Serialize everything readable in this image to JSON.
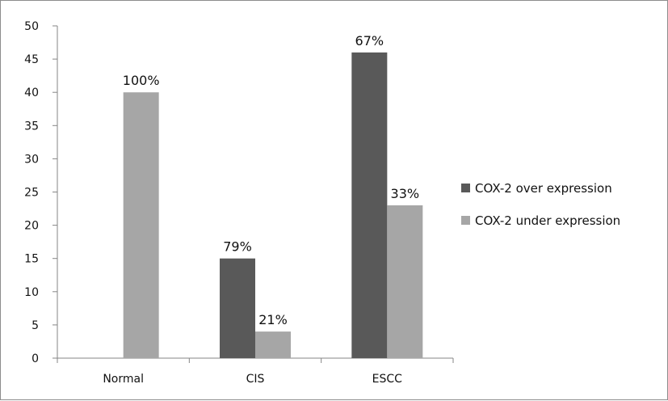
{
  "chart_data": {
    "type": "bar",
    "categories": [
      "Normal",
      "CIS",
      "ESCC"
    ],
    "series": [
      {
        "name": "COX-2 over expression",
        "values": [
          0,
          15,
          46
        ],
        "labels": [
          "",
          "79%",
          "67%"
        ],
        "color": "#595959"
      },
      {
        "name": "COX-2 under expression",
        "values": [
          40,
          4,
          23
        ],
        "labels": [
          "100%",
          "21%",
          "33%"
        ],
        "color": "#a6a6a6"
      }
    ],
    "title": "",
    "xlabel": "",
    "ylabel": "",
    "ylim": [
      0,
      50
    ],
    "yticks": [
      0,
      5,
      10,
      15,
      20,
      25,
      30,
      35,
      40,
      45,
      50
    ],
    "grid": false,
    "legend_position": "right"
  }
}
